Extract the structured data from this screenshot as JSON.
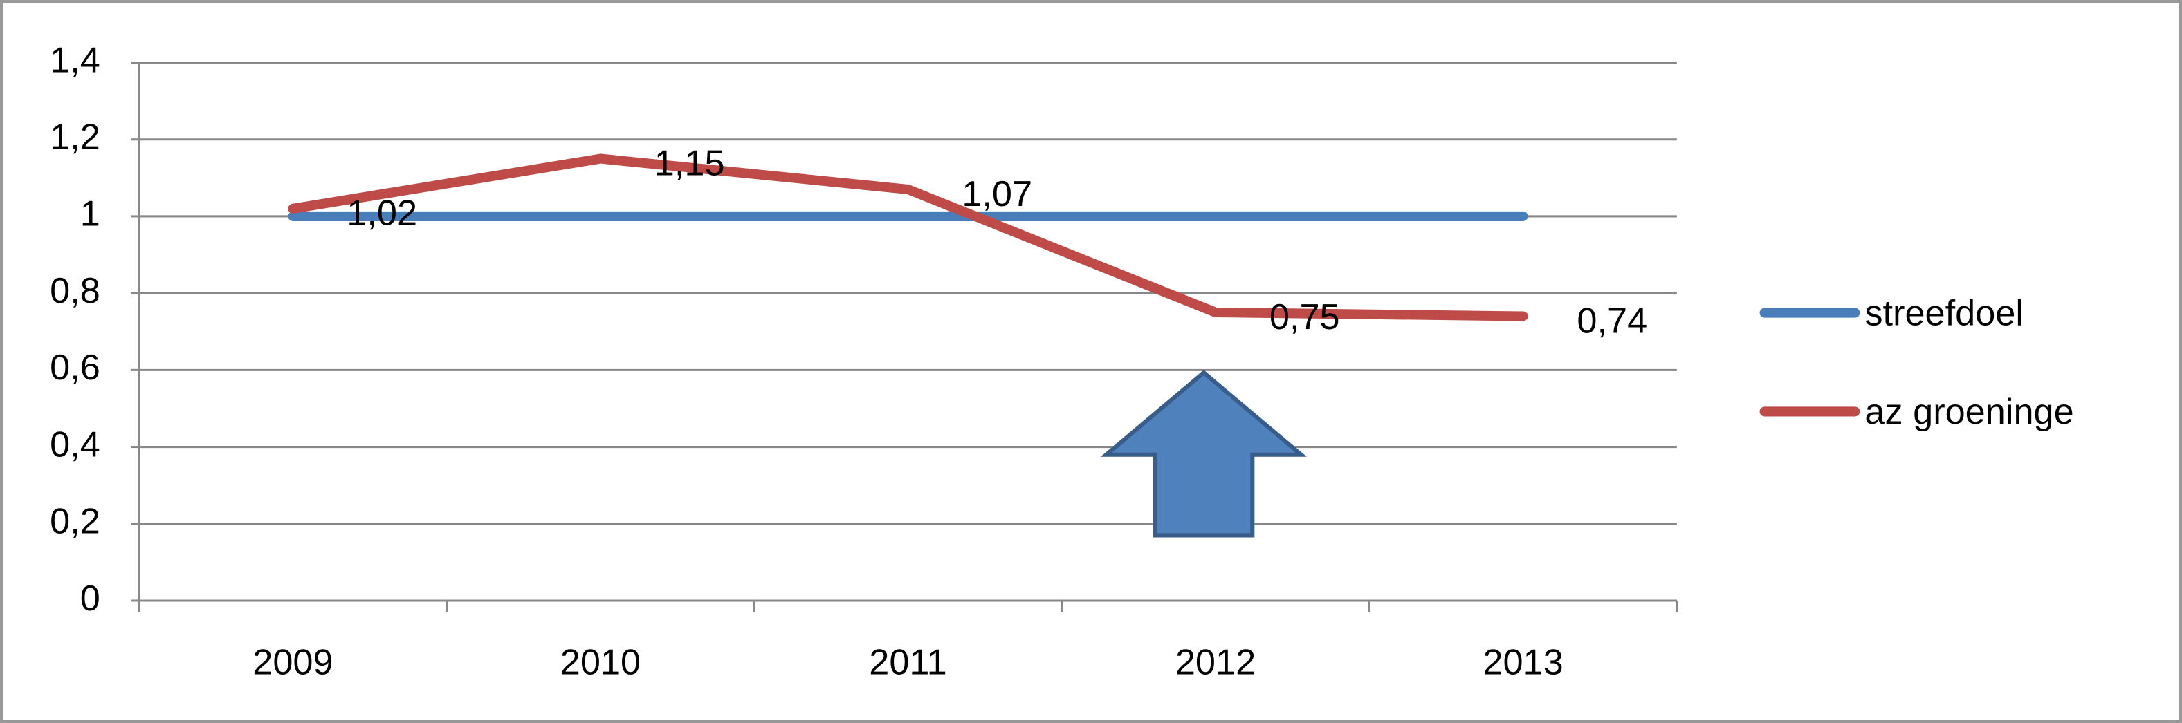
{
  "chart_data": {
    "type": "line",
    "categories": [
      "2009",
      "2010",
      "2011",
      "2012",
      "2013"
    ],
    "series": [
      {
        "name": "streefdoel",
        "color": "#4a7ebb",
        "values": [
          1,
          1,
          1,
          1,
          1
        ]
      },
      {
        "name": "az groeninge",
        "color": "#be4b48",
        "values": [
          1.02,
          1.15,
          1.07,
          0.75,
          0.74
        ],
        "value_labels": [
          "1,02",
          "1,15",
          "1,07",
          "0,75",
          "0,74"
        ]
      }
    ],
    "ylim": [
      0,
      1.4
    ],
    "yticks": [
      0,
      {
        "value": 0.2,
        "label": "0,2"
      },
      {
        "value": 0.4,
        "label": "0,4"
      },
      {
        "value": 0.6,
        "label": "0,6"
      },
      {
        "value": 0.8,
        "label": "0,8"
      },
      1,
      {
        "value": 1.2,
        "label": "1,2"
      },
      {
        "value": 1.4,
        "label": "1,4"
      }
    ],
    "grid": true,
    "legend": "right"
  }
}
